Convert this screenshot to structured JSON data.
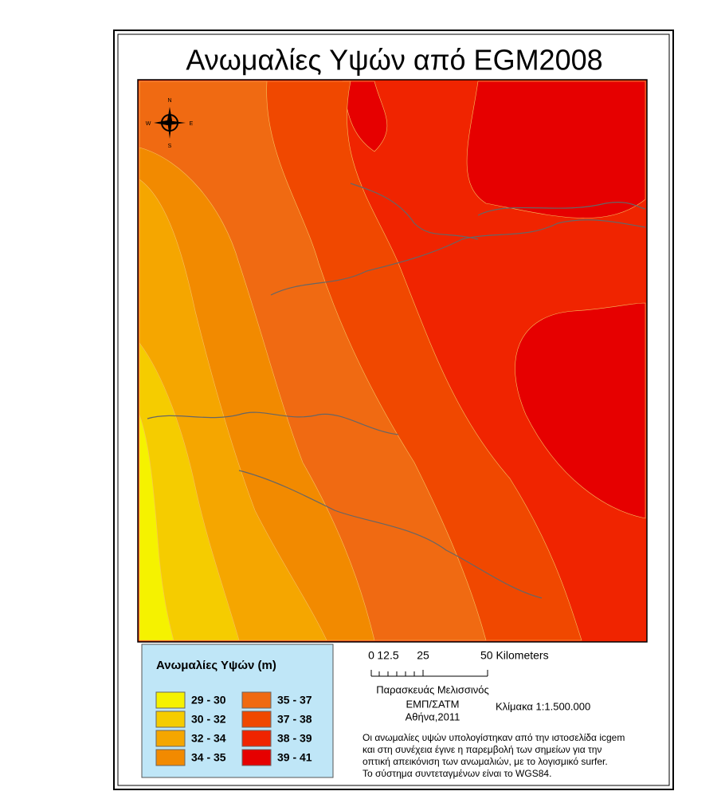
{
  "title": "Ανωμαλίες Υψών από EGM2008",
  "north_arrow": {
    "n": "N",
    "s": "S",
    "e": "E",
    "w": "W"
  },
  "legend": {
    "title": "Ανωμαλίες Υψών (m)",
    "items": [
      {
        "label": "29 - 30",
        "color": "#f5f200"
      },
      {
        "label": "30 - 32",
        "color": "#f5cc00"
      },
      {
        "label": "32 - 34",
        "color": "#f5a600"
      },
      {
        "label": "34 - 35",
        "color": "#f28a00"
      },
      {
        "label": "35 - 37",
        "color": "#f06a12"
      },
      {
        "label": "37 - 38",
        "color": "#f04800"
      },
      {
        "label": "38 - 39",
        "color": "#f02400"
      },
      {
        "label": "39 - 41",
        "color": "#e60000"
      }
    ]
  },
  "scale_bar": {
    "labels": [
      "0",
      "12.5",
      "25",
      "50 Kilometers"
    ]
  },
  "author": [
    "Παρασκευάς Μελισσινός",
    "ΕΜΠ/ΣΑΤΜ",
    "Αθήνα,2011"
  ],
  "scale": "Κλίμακα 1:1.500.000",
  "note": [
    "Οι ανωμαλίες υψών υπολογίστηκαν από την ιστοσελίδα icgem",
    "και στη συνέχεια έγινε η παρεμβολή των σημείων για την",
    "οπτική απεικόνιση των ανωμαλιών, με το λογισμικό surfer.",
    "Το σύστημα συντεταγμένων είναι το WGS84."
  ]
}
